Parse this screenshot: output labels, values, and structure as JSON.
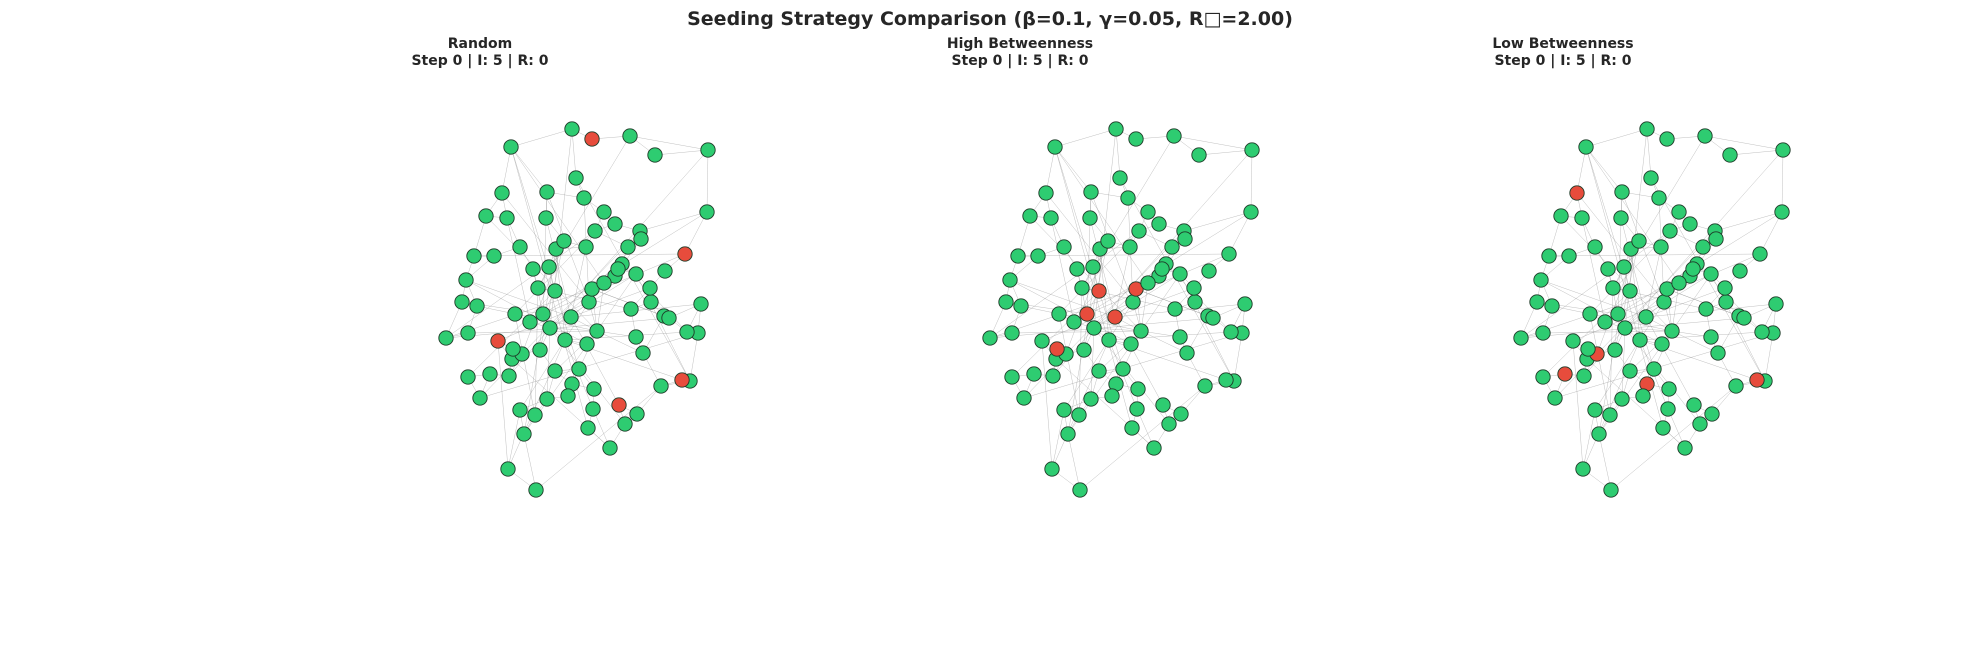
{
  "title": "Seeding Strategy Comparison (β=0.1, γ=0.05, R□=2.00)",
  "colors": {
    "susceptible": "#2ecc71",
    "infected": "#e74c3c",
    "edge": "#8a8a8a"
  },
  "panels": [
    {
      "name": "Random",
      "status": "Step 0 | I: 5 | R: 0"
    },
    {
      "name": "High Betweenness",
      "status": "Step 0 | I: 5 | R: 0"
    },
    {
      "name": "Low Betweenness",
      "status": "Step 0 | I: 5 | R: 0"
    }
  ]
}
